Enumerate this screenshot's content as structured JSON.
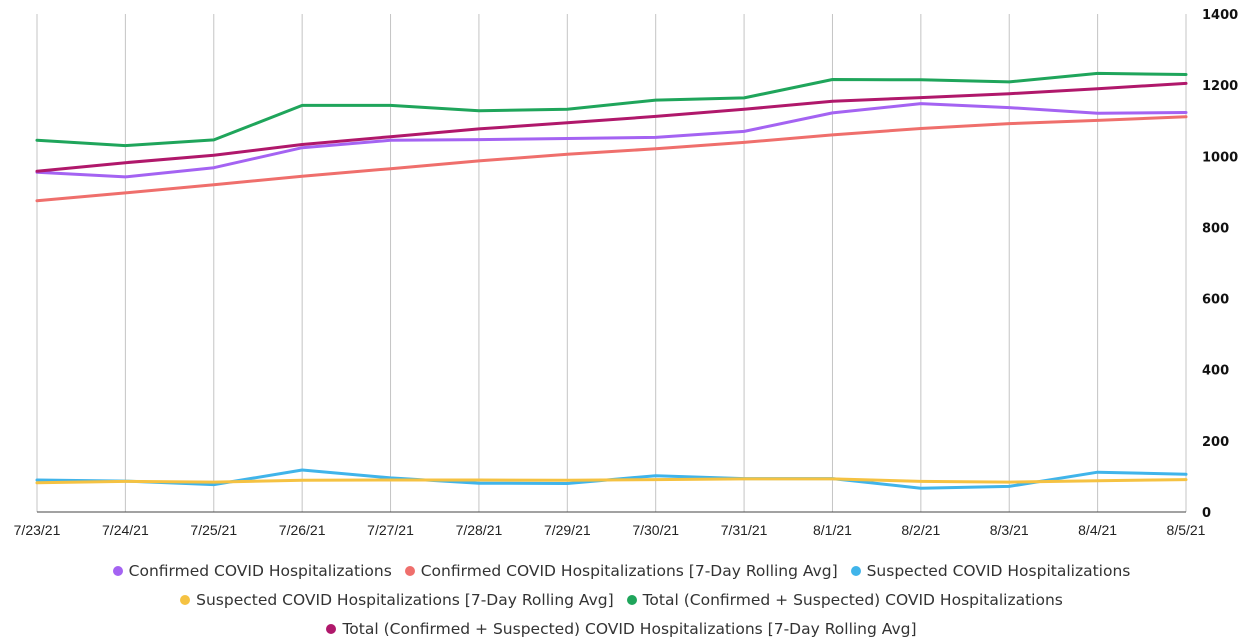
{
  "chart_data": {
    "type": "line",
    "title": "",
    "xlabel": "",
    "ylabel": "",
    "x": [
      "7/23/21",
      "7/24/21",
      "7/25/21",
      "7/26/21",
      "7/27/21",
      "7/28/21",
      "7/29/21",
      "7/30/21",
      "7/31/21",
      "8/1/21",
      "8/2/21",
      "8/3/21",
      "8/4/21",
      "8/5/21"
    ],
    "ylim": [
      0,
      1400
    ],
    "yticks": [
      0,
      200,
      400,
      600,
      800,
      1000,
      1200,
      1400
    ],
    "y_axis_side": "right",
    "grid": "vertical",
    "legend_position": "bottom",
    "series": [
      {
        "name": "Confirmed COVID Hospitalizations",
        "color": "#a463f2",
        "values": [
          955,
          942,
          968,
          1024,
          1045,
          1047,
          1050,
          1053,
          1070,
          1122,
          1148,
          1137,
          1121,
          1123
        ]
      },
      {
        "name": "Confirmed COVID Hospitalizations [7-Day Rolling Avg]",
        "color": "#ef6f6c",
        "values": [
          875,
          897,
          920,
          944,
          965,
          987,
          1006,
          1021,
          1039,
          1060,
          1078,
          1092,
          1101,
          1111
        ]
      },
      {
        "name": "Suspected COVID Hospitalizations",
        "color": "#40b4ea",
        "values": [
          90,
          87,
          77,
          118,
          96,
          81,
          80,
          102,
          94,
          94,
          67,
          72,
          112,
          106
        ]
      },
      {
        "name": "Suspected COVID Hospitalizations [7-Day Rolling Avg]",
        "color": "#f5c242",
        "values": [
          82,
          86,
          84,
          89,
          90,
          90,
          89,
          91,
          93,
          93,
          86,
          84,
          88,
          91
        ]
      },
      {
        "name": "Total (Confirmed + Suspected) COVID Hospitalizations",
        "color": "#1fa55b",
        "values": [
          1045,
          1030,
          1046,
          1143,
          1143,
          1128,
          1132,
          1158,
          1164,
          1216,
          1215,
          1209,
          1233,
          1230
        ]
      },
      {
        "name": "Total (Confirmed + Suspected) COVID Hospitalizations [7-Day Rolling Avg]",
        "color": "#b0186b",
        "values": [
          958,
          982,
          1003,
          1033,
          1055,
          1077,
          1094,
          1112,
          1132,
          1155,
          1165,
          1176,
          1190,
          1205
        ]
      }
    ]
  }
}
